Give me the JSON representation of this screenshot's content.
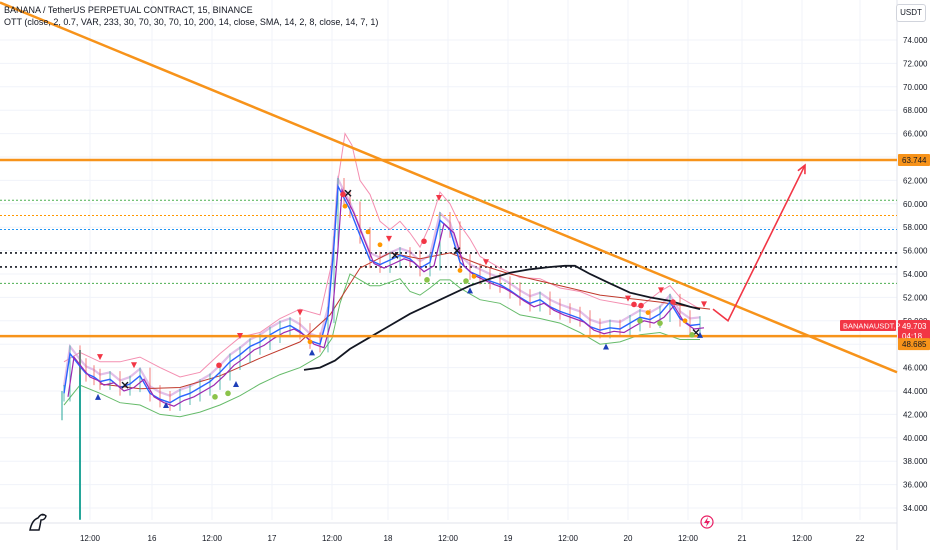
{
  "header": {
    "title": "BANANA / TetherUS PERPETUAL CONTRACT, 15, BINANCE",
    "indicator": "OTT (close, 2, 0.7, VAR, 233, 30, 70, 30, 70, 10, 200, 14, close, SMA, 14, 2, 8, close, 14, 7, 1)",
    "currency": "USDT"
  },
  "price_labels": {
    "target": "63.744",
    "symbol": "BANANAUSDT.P",
    "current": "49.703",
    "countdown": "04:18",
    "support": "48.685"
  },
  "colors": {
    "orange": "#f7931a",
    "red_label": "#f23645",
    "arrow": "#f23645",
    "dotted_green": "#4caf50",
    "dotted_blue": "#2196f3",
    "dotted_black": "#131722",
    "dotted_orange": "#ff9800"
  },
  "icons": {
    "logo": "dinosaur-logo-icon",
    "replay": "lightning-icon"
  },
  "chart_data": {
    "type": "line",
    "y_ticks": [
      "74.000",
      "72.000",
      "70.000",
      "68.000",
      "66.000",
      "64.000",
      "62.000",
      "60.000",
      "58.000",
      "56.000",
      "54.000",
      "52.000",
      "50.000",
      "48.000",
      "46.000",
      "44.000",
      "42.000",
      "40.000",
      "38.000",
      "36.000",
      "34.000"
    ],
    "ylim": [
      33,
      75
    ],
    "x_ticks": [
      "12:00",
      "16",
      "12:00",
      "17",
      "12:00",
      "18",
      "12:00",
      "19",
      "12:00",
      "20",
      "12:00",
      "21",
      "12:00",
      "22"
    ],
    "horizontal_levels": [
      {
        "value": 63.744,
        "style": "solid",
        "color": "orange"
      },
      {
        "value": 48.685,
        "style": "solid",
        "color": "orange"
      },
      {
        "value": 60.3,
        "style": "dotted",
        "color": "green"
      },
      {
        "value": 59.0,
        "style": "dotted",
        "color": "orange"
      },
      {
        "value": 57.8,
        "style": "dotted",
        "color": "blue"
      },
      {
        "value": 55.8,
        "style": "dotted",
        "color": "black"
      },
      {
        "value": 54.6,
        "style": "dotted",
        "color": "black"
      },
      {
        "value": 53.2,
        "style": "dotted",
        "color": "green"
      }
    ],
    "trendline": {
      "from": [
        0,
        77.2
      ],
      "to": [
        897,
        45.6
      ]
    },
    "projection": [
      [
        713,
        51.0
      ],
      [
        728,
        50.0
      ],
      [
        805,
        63.3
      ]
    ],
    "price": [
      [
        64,
        43.8
      ],
      [
        70,
        47.2
      ],
      [
        80,
        46.1
      ],
      [
        86,
        45.5
      ],
      [
        94,
        45.2
      ],
      [
        100,
        44.8
      ],
      [
        110,
        45.0
      ],
      [
        120,
        44.3
      ],
      [
        130,
        44.6
      ],
      [
        140,
        45.3
      ],
      [
        150,
        43.8
      ],
      [
        160,
        43.3
      ],
      [
        170,
        43.0
      ],
      [
        180,
        43.5
      ],
      [
        190,
        43.8
      ],
      [
        200,
        44.3
      ],
      [
        210,
        44.8
      ],
      [
        220,
        45.6
      ],
      [
        230,
        46.5
      ],
      [
        240,
        47.1
      ],
      [
        250,
        47.8
      ],
      [
        260,
        48.2
      ],
      [
        270,
        48.8
      ],
      [
        280,
        49.3
      ],
      [
        290,
        49.6
      ],
      [
        300,
        49.1
      ],
      [
        310,
        48.3
      ],
      [
        320,
        48.0
      ],
      [
        328,
        50.5
      ],
      [
        334,
        56.5
      ],
      [
        338,
        61.5
      ],
      [
        344,
        60.5
      ],
      [
        350,
        59.5
      ],
      [
        360,
        57.3
      ],
      [
        370,
        55.2
      ],
      [
        380,
        54.8
      ],
      [
        390,
        55.2
      ],
      [
        400,
        55.6
      ],
      [
        410,
        55.3
      ],
      [
        420,
        54.5
      ],
      [
        430,
        55.0
      ],
      [
        440,
        58.6
      ],
      [
        450,
        57.8
      ],
      [
        460,
        55.0
      ],
      [
        470,
        54.2
      ],
      [
        480,
        53.8
      ],
      [
        490,
        53.4
      ],
      [
        500,
        53.1
      ],
      [
        510,
        52.6
      ],
      [
        520,
        52.0
      ],
      [
        530,
        51.5
      ],
      [
        540,
        51.8
      ],
      [
        550,
        51.2
      ],
      [
        560,
        50.8
      ],
      [
        570,
        50.5
      ],
      [
        580,
        50.2
      ],
      [
        590,
        49.5
      ],
      [
        600,
        49.2
      ],
      [
        610,
        49.4
      ],
      [
        620,
        49.3
      ],
      [
        630,
        49.8
      ],
      [
        640,
        50.3
      ],
      [
        650,
        50.1
      ],
      [
        660,
        50.6
      ],
      [
        670,
        51.6
      ],
      [
        680,
        50.2
      ],
      [
        690,
        49.6
      ],
      [
        700,
        49.7
      ]
    ],
    "ma_black": [
      [
        304,
        45.8
      ],
      [
        320,
        46.0
      ],
      [
        335,
        46.6
      ],
      [
        350,
        47.6
      ],
      [
        370,
        48.6
      ],
      [
        390,
        49.6
      ],
      [
        410,
        50.6
      ],
      [
        430,
        51.4
      ],
      [
        450,
        52.2
      ],
      [
        470,
        53.0
      ],
      [
        490,
        53.6
      ],
      [
        510,
        54.1
      ],
      [
        530,
        54.4
      ],
      [
        550,
        54.6
      ],
      [
        565,
        54.7
      ],
      [
        575,
        54.7
      ],
      [
        590,
        54.0
      ],
      [
        610,
        53.2
      ],
      [
        630,
        52.4
      ],
      [
        650,
        52.0
      ],
      [
        670,
        51.7
      ],
      [
        690,
        51.2
      ],
      [
        700,
        51.0
      ]
    ],
    "ma_red": [
      [
        100,
        44.6
      ],
      [
        140,
        44.2
      ],
      [
        180,
        44.3
      ],
      [
        220,
        45.3
      ],
      [
        260,
        46.8
      ],
      [
        300,
        48.2
      ],
      [
        330,
        50.5
      ],
      [
        360,
        54.5
      ],
      [
        390,
        55.8
      ],
      [
        420,
        55.3
      ],
      [
        450,
        55.8
      ],
      [
        480,
        54.8
      ],
      [
        510,
        54.0
      ],
      [
        540,
        53.4
      ],
      [
        570,
        52.8
      ],
      [
        600,
        52.2
      ],
      [
        630,
        51.9
      ],
      [
        660,
        51.6
      ],
      [
        690,
        51.2
      ],
      [
        710,
        51.0
      ]
    ],
    "band_upper": [
      [
        64,
        46.5
      ],
      [
        80,
        47.3
      ],
      [
        100,
        46.5
      ],
      [
        120,
        46.5
      ],
      [
        140,
        46.9
      ],
      [
        160,
        46.0
      ],
      [
        180,
        45.2
      ],
      [
        200,
        45.6
      ],
      [
        220,
        47.2
      ],
      [
        240,
        48.6
      ],
      [
        260,
        49.0
      ],
      [
        280,
        50.2
      ],
      [
        300,
        51.0
      ],
      [
        320,
        50.5
      ],
      [
        332,
        55.0
      ],
      [
        338,
        62.0
      ],
      [
        345,
        66.0
      ],
      [
        352,
        65.0
      ],
      [
        360,
        62.0
      ],
      [
        370,
        60.8
      ],
      [
        380,
        58.5
      ],
      [
        390,
        57.8
      ],
      [
        400,
        58.5
      ],
      [
        410,
        57.5
      ],
      [
        420,
        56.3
      ],
      [
        430,
        58.2
      ],
      [
        440,
        61.0
      ],
      [
        450,
        60.0
      ],
      [
        460,
        58.2
      ],
      [
        470,
        57.0
      ],
      [
        480,
        55.5
      ],
      [
        500,
        54.5
      ],
      [
        520,
        53.7
      ],
      [
        540,
        53.6
      ],
      [
        560,
        52.8
      ],
      [
        580,
        52.5
      ],
      [
        600,
        51.8
      ],
      [
        620,
        51.5
      ],
      [
        640,
        51.2
      ],
      [
        660,
        52.5
      ],
      [
        670,
        53.0
      ],
      [
        680,
        52.0
      ],
      [
        700,
        51.0
      ]
    ],
    "band_lower": [
      [
        64,
        42.8
      ],
      [
        80,
        44.5
      ],
      [
        100,
        43.8
      ],
      [
        120,
        43.0
      ],
      [
        140,
        42.8
      ],
      [
        160,
        42.0
      ],
      [
        180,
        41.8
      ],
      [
        200,
        42.2
      ],
      [
        220,
        42.8
      ],
      [
        240,
        43.6
      ],
      [
        260,
        44.6
      ],
      [
        280,
        45.4
      ],
      [
        300,
        46.0
      ],
      [
        320,
        47.0
      ],
      [
        332,
        48.5
      ],
      [
        340,
        51.5
      ],
      [
        350,
        54.0
      ],
      [
        360,
        53.5
      ],
      [
        370,
        53.0
      ],
      [
        380,
        53.0
      ],
      [
        390,
        53.3
      ],
      [
        400,
        53.6
      ],
      [
        410,
        52.5
      ],
      [
        420,
        52.2
      ],
      [
        430,
        52.8
      ],
      [
        440,
        53.5
      ],
      [
        450,
        53.5
      ],
      [
        460,
        52.8
      ],
      [
        470,
        52.3
      ],
      [
        480,
        51.8
      ],
      [
        500,
        51.5
      ],
      [
        520,
        50.5
      ],
      [
        540,
        50.2
      ],
      [
        560,
        49.8
      ],
      [
        580,
        49.0
      ],
      [
        600,
        48.0
      ],
      [
        620,
        48.2
      ],
      [
        640,
        48.8
      ],
      [
        660,
        49.0
      ],
      [
        680,
        48.4
      ],
      [
        700,
        48.4
      ]
    ],
    "buy_markers": [
      [
        98,
        43.5
      ],
      [
        166,
        42.8
      ],
      [
        236,
        44.6
      ],
      [
        312,
        47.3
      ],
      [
        470,
        52.6
      ],
      [
        606,
        47.8
      ],
      [
        700,
        48.8
      ]
    ],
    "sell_markers": [
      [
        100,
        46.9
      ],
      [
        134,
        46.2
      ],
      [
        240,
        48.7
      ],
      [
        300,
        50.7
      ],
      [
        389,
        57.0
      ],
      [
        439,
        60.5
      ],
      [
        486,
        55.0
      ],
      [
        628,
        51.9
      ],
      [
        661,
        52.6
      ],
      [
        704,
        51.4
      ]
    ],
    "cross_markers": [
      [
        125,
        44.5
      ],
      [
        348,
        60.9
      ],
      [
        395,
        55.6
      ],
      [
        457,
        56.0
      ],
      [
        696,
        49.0
      ]
    ],
    "bull_dots": [
      [
        215,
        43.5
      ],
      [
        228,
        43.8
      ],
      [
        427,
        53.5
      ],
      [
        466,
        53.4
      ],
      [
        640,
        50.0
      ],
      [
        660,
        49.8
      ],
      [
        692,
        48.8
      ]
    ],
    "bear_dots": [
      [
        219,
        46.2
      ],
      [
        343,
        60.8
      ],
      [
        424,
        56.8
      ],
      [
        634,
        51.4
      ],
      [
        641,
        51.3
      ],
      [
        673,
        51.6
      ]
    ]
  }
}
